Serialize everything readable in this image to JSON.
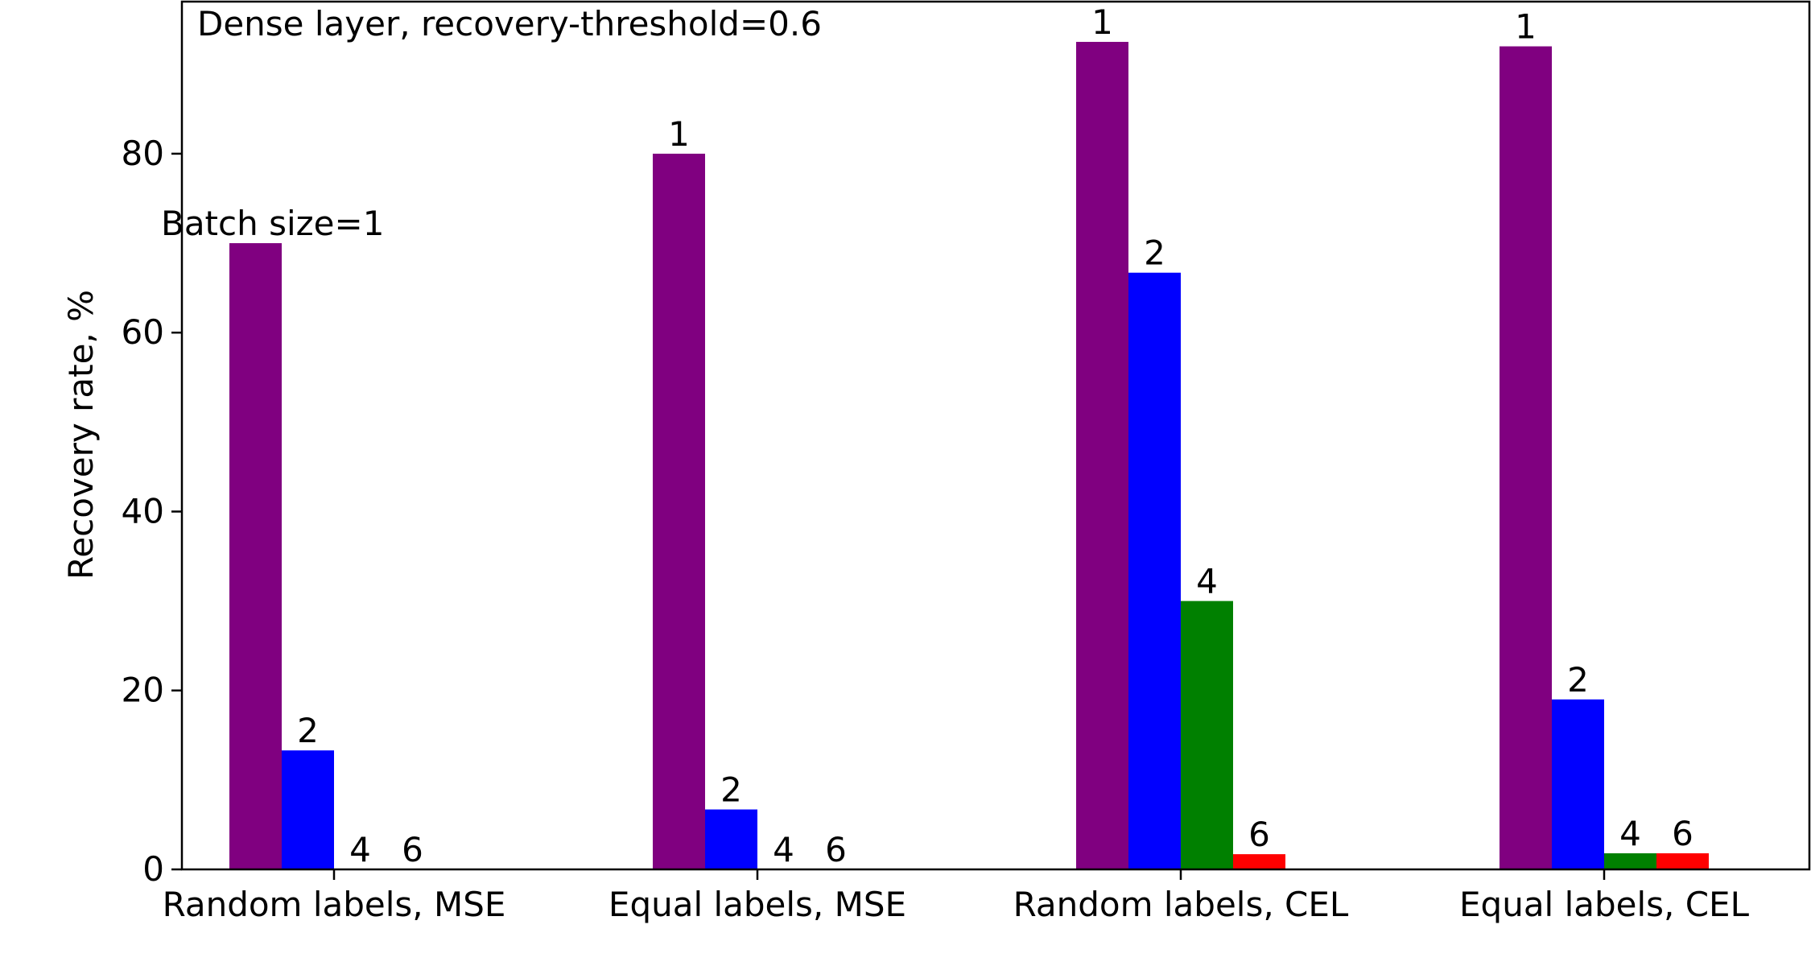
{
  "chart_data": {
    "type": "bar",
    "title": "Dense layer, recovery-threshold=0.6",
    "xlabel": "",
    "ylabel": "Recovery rate, %",
    "ylim": [
      0,
      97
    ],
    "yticks": [
      0,
      20,
      40,
      60,
      80
    ],
    "grid": false,
    "categories": [
      "Random labels, MSE",
      "Equal labels, MSE",
      "Random labels, CEL",
      "Equal labels, CEL"
    ],
    "series": [
      {
        "name": "1",
        "color": "#800080",
        "values": [
          70,
          80,
          92.5,
          92
        ]
      },
      {
        "name": "2",
        "color": "#0000ff",
        "values": [
          13.3,
          6.7,
          66.7,
          19
        ]
      },
      {
        "name": "4",
        "color": "#008000",
        "values": [
          0,
          0,
          30,
          1.8
        ]
      },
      {
        "name": "6",
        "color": "#ff0000",
        "values": [
          0,
          0,
          1.7,
          1.8
        ]
      }
    ],
    "annotations": [
      {
        "text": "Batch size=1",
        "category_index": 0,
        "series_index": 0
      }
    ]
  }
}
